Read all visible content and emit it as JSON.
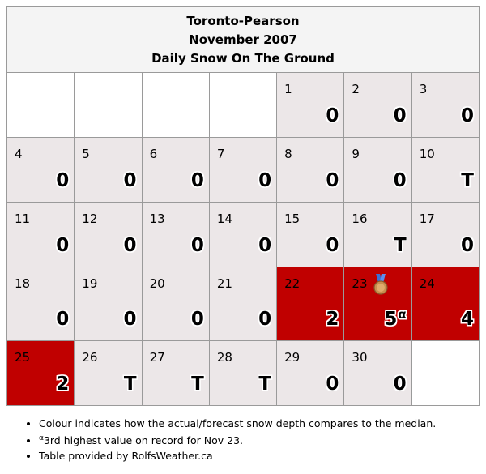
{
  "header": {
    "station": "Toronto-Pearson",
    "month": "November 2007",
    "subtitle": "Daily Snow On The Ground"
  },
  "weeks": [
    [
      null,
      null,
      null,
      null,
      {
        "day": "1",
        "value": "0"
      },
      {
        "day": "2",
        "value": "0"
      },
      {
        "day": "3",
        "value": "0"
      }
    ],
    [
      {
        "day": "4",
        "value": "0"
      },
      {
        "day": "5",
        "value": "0"
      },
      {
        "day": "6",
        "value": "0"
      },
      {
        "day": "7",
        "value": "0"
      },
      {
        "day": "8",
        "value": "0"
      },
      {
        "day": "9",
        "value": "0"
      },
      {
        "day": "10",
        "value": "T"
      }
    ],
    [
      {
        "day": "11",
        "value": "0"
      },
      {
        "day": "12",
        "value": "0"
      },
      {
        "day": "13",
        "value": "0"
      },
      {
        "day": "14",
        "value": "0"
      },
      {
        "day": "15",
        "value": "0"
      },
      {
        "day": "16",
        "value": "T"
      },
      {
        "day": "17",
        "value": "0"
      }
    ],
    [
      {
        "day": "18",
        "value": "0"
      },
      {
        "day": "19",
        "value": "0"
      },
      {
        "day": "20",
        "value": "0"
      },
      {
        "day": "21",
        "value": "0"
      },
      {
        "day": "22",
        "value": "2",
        "status": "above-median"
      },
      {
        "day": "23",
        "value": "5",
        "sup": "α",
        "status": "above-median",
        "medal": "bronze-medal"
      },
      {
        "day": "24",
        "value": "4",
        "status": "above-median"
      }
    ],
    [
      {
        "day": "25",
        "value": "2",
        "status": "above-median"
      },
      {
        "day": "26",
        "value": "T"
      },
      {
        "day": "27",
        "value": "T"
      },
      {
        "day": "28",
        "value": "T"
      },
      {
        "day": "29",
        "value": "0"
      },
      {
        "day": "30",
        "value": "0"
      },
      null
    ]
  ],
  "colors": {
    "normal": "#ece7e8",
    "above-median": "#c00000",
    "empty": "#ffffff"
  },
  "notes": {
    "colour": "Colour indicates how the actual/forecast snow depth compares to the median.",
    "footnote_mark": "α",
    "footnote": "3rd highest value on record for Nov 23.",
    "credit": "Table provided by RolfsWeather.ca"
  }
}
